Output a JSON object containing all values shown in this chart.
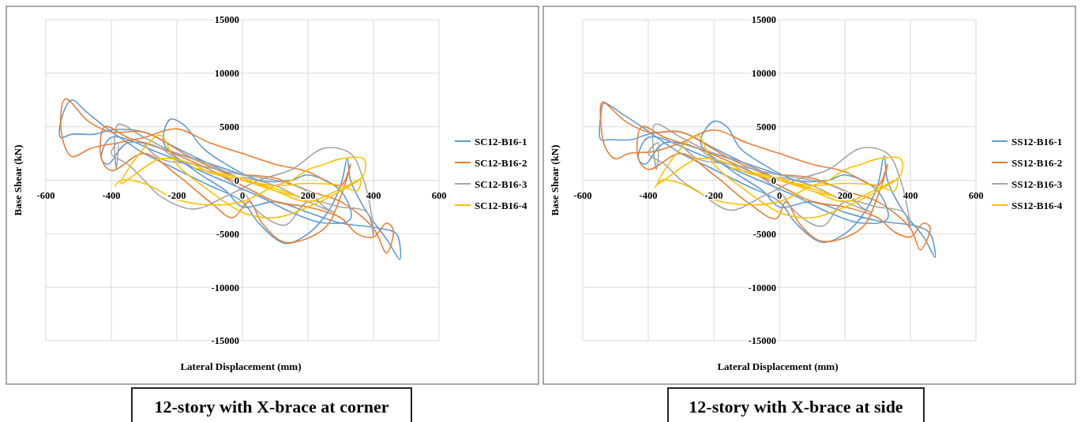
{
  "chart_data": [
    {
      "type": "line",
      "title": "12-story with X-brace at corner",
      "xlabel": "Lateral Displacement (mm)",
      "ylabel": "Base Shear (kN)",
      "xlim": [
        -600,
        600
      ],
      "xticks": [
        -600,
        -400,
        -200,
        0,
        200,
        400,
        600
      ],
      "ylim": [
        -15000,
        15000
      ],
      "yticks": [
        -15000,
        -10000,
        -5000,
        0,
        5000,
        10000,
        15000
      ],
      "grid": true,
      "legend": "right",
      "line_style": "solid",
      "marker": "none",
      "series": [
        {
          "name": "SC12-B16-1",
          "color": "#5b9bd5",
          "x": [
            0,
            -100,
            -200,
            -300,
            -400,
            -450,
            -520,
            -555,
            -550,
            -520,
            -480,
            -420,
            -350,
            -300,
            -200,
            -100,
            0,
            50,
            130,
            200,
            260,
            300,
            320,
            330,
            380,
            440,
            480,
            470,
            420,
            300,
            200,
            100,
            0,
            -50,
            -150,
            -240,
            -220,
            -180,
            -120,
            -50,
            50,
            150,
            200,
            300,
            330,
            250,
            150,
            50,
            -100,
            -250,
            -400,
            -430,
            -410,
            -350,
            -200,
            0
          ],
          "values": [
            0,
            1500,
            3000,
            4500,
            4700,
            4300,
            4300,
            4000,
            6000,
            7500,
            6500,
            5000,
            3500,
            2500,
            1000,
            -500,
            -2000,
            -4000,
            -5900,
            -5000,
            -3000,
            -500,
            2000,
            0,
            -3000,
            -5500,
            -7400,
            -5000,
            -4500,
            -4000,
            -3000,
            -2000,
            -2500,
            -1000,
            1000,
            3500,
            5700,
            5200,
            3000,
            1500,
            0,
            0,
            500,
            -1000,
            -3600,
            -4000,
            -3000,
            -1500,
            500,
            2500,
            4000,
            2000,
            1500,
            3500,
            2500,
            500
          ]
        },
        {
          "name": "SC12-B16-2",
          "color": "#ed7d31",
          "x": [
            0,
            -150,
            -300,
            -400,
            -470,
            -540,
            -555,
            -540,
            -520,
            -460,
            -380,
            -300,
            -200,
            -100,
            0,
            100,
            200,
            300,
            330,
            300,
            250,
            130,
            60,
            20,
            -30,
            -100,
            -200,
            -300,
            -400,
            -430,
            -420,
            -350,
            -250,
            -100,
            0,
            100,
            200,
            300,
            350,
            400,
            440,
            460,
            440,
            400,
            300,
            200,
            100,
            0
          ],
          "values": [
            0,
            2000,
            4500,
            4500,
            5500,
            7600,
            5500,
            3000,
            2200,
            3000,
            3500,
            4000,
            4800,
            3500,
            2500,
            1500,
            800,
            -500,
            1500,
            -1500,
            -4500,
            -5800,
            -4000,
            -2000,
            -3500,
            -2000,
            500,
            2500,
            900,
            2000,
            5000,
            4000,
            3000,
            1000,
            -500,
            -2000,
            -2500,
            -3500,
            -5000,
            -5300,
            -4000,
            -4600,
            -6800,
            -4500,
            -2000,
            -1000,
            200,
            500
          ]
        },
        {
          "name": "SC12-B16-3",
          "color": "#a5a5a5",
          "x": [
            0,
            -100,
            -200,
            -300,
            -380,
            -385,
            -380,
            -400,
            -350,
            -300,
            -250,
            -150,
            -50,
            50,
            150,
            250,
            330,
            370,
            390,
            400,
            380,
            300,
            200,
            130,
            50,
            0,
            -100,
            -200,
            -250,
            -300,
            -250,
            -150,
            0,
            100,
            200,
            250,
            280,
            200,
            100,
            0
          ],
          "values": [
            0,
            1500,
            2500,
            4000,
            5200,
            1000,
            3500,
            2500,
            1500,
            0,
            -1500,
            -2700,
            -1500,
            0,
            1000,
            3000,
            2500,
            0,
            -2500,
            -5200,
            -3000,
            -2500,
            -2000,
            -4200,
            -3000,
            -1000,
            1000,
            2000,
            3000,
            3500,
            2000,
            1500,
            500,
            0,
            -1000,
            -2500,
            -3000,
            -2000,
            -500,
            300
          ]
        },
        {
          "name": "SC12-B16-4",
          "color": "#ffc000",
          "x": [
            -390,
            -370,
            -300,
            -200,
            -100,
            0,
            100,
            150,
            200,
            250,
            300,
            370,
            370,
            300,
            200,
            100,
            0,
            -100,
            -200,
            -250,
            -300,
            -370,
            -250,
            -150,
            -100,
            0,
            100,
            170,
            100,
            0,
            -100,
            -150,
            0,
            100,
            200,
            300,
            350,
            360,
            300,
            200,
            100,
            0
          ],
          "values": [
            -600,
            0,
            -300,
            -1800,
            -2300,
            -2000,
            -500,
            0,
            1000,
            1500,
            2000,
            2000,
            500,
            -1000,
            -2500,
            -3500,
            -3000,
            -1000,
            1500,
            4200,
            3000,
            -300,
            2000,
            1500,
            700,
            0,
            -800,
            -1500,
            -1000,
            200,
            800,
            1200,
            0,
            -500,
            -300,
            -500,
            -1000,
            0,
            -800,
            -2000,
            -1000,
            0
          ]
        }
      ]
    },
    {
      "type": "line",
      "title": "12-story with X-brace at side",
      "xlabel": "Lateral Displacement (mm)",
      "ylabel": "Base Shear (kN)",
      "xlim": [
        -600,
        600
      ],
      "xticks": [
        -600,
        -400,
        -200,
        0,
        200,
        400,
        600
      ],
      "ylim": [
        -15000,
        15000
      ],
      "yticks": [
        -15000,
        -10000,
        -5000,
        0,
        5000,
        10000,
        15000
      ],
      "grid": true,
      "legend": "right",
      "line_style": "solid",
      "marker": "none",
      "series": [
        {
          "name": "SS12-B16-1",
          "color": "#5b9bd5",
          "x": [
            0,
            -100,
            -200,
            -300,
            -400,
            -450,
            -520,
            -545,
            -545,
            -535,
            -480,
            -420,
            -350,
            -300,
            -200,
            -100,
            0,
            50,
            130,
            200,
            260,
            300,
            320,
            330,
            380,
            440,
            475,
            460,
            420,
            300,
            200,
            100,
            0,
            -50,
            -150,
            -240,
            -200,
            -160,
            -120,
            -50,
            50,
            150,
            200,
            300,
            330,
            250,
            150,
            50,
            -100,
            -250,
            -400,
            -430,
            -410,
            -350,
            -200,
            0
          ],
          "values": [
            0,
            1500,
            3000,
            4500,
            4300,
            3800,
            3800,
            3800,
            6000,
            7200,
            6200,
            5000,
            3500,
            2500,
            1000,
            -500,
            -2000,
            -4000,
            -5800,
            -5000,
            -3000,
            -500,
            2300,
            0,
            -3000,
            -5300,
            -7200,
            -5000,
            -4300,
            -3800,
            -3000,
            -2000,
            -2500,
            -1000,
            1000,
            3500,
            5500,
            5000,
            3000,
            1500,
            0,
            0,
            500,
            -1000,
            -3600,
            -4000,
            -3000,
            -1500,
            500,
            2500,
            4000,
            2000,
            1500,
            3500,
            2500,
            500
          ]
        },
        {
          "name": "SS12-B16-2",
          "color": "#ed7d31",
          "x": [
            0,
            -150,
            -300,
            -400,
            -470,
            -540,
            -545,
            -530,
            -500,
            -460,
            -380,
            -300,
            -200,
            -100,
            0,
            100,
            200,
            300,
            330,
            300,
            250,
            130,
            60,
            20,
            -10,
            -100,
            -200,
            -300,
            -400,
            -430,
            -420,
            -350,
            -250,
            -100,
            0,
            100,
            200,
            300,
            350,
            400,
            440,
            460,
            430,
            400,
            300,
            200,
            100,
            0
          ],
          "values": [
            0,
            2000,
            4500,
            4500,
            5500,
            7300,
            5500,
            3000,
            2000,
            2500,
            2700,
            3500,
            4700,
            3500,
            2500,
            1500,
            800,
            -500,
            1500,
            -1500,
            -4500,
            -5700,
            -4000,
            -2000,
            -3600,
            -2000,
            500,
            2500,
            1000,
            2000,
            5000,
            4000,
            3000,
            1000,
            -500,
            -2000,
            -2500,
            -3500,
            -4800,
            -5300,
            -4000,
            -4400,
            -6500,
            -4500,
            -2000,
            -1000,
            200,
            500
          ]
        },
        {
          "name": "SS12-B16-3",
          "color": "#a5a5a5",
          "x": [
            0,
            -100,
            -200,
            -300,
            -380,
            -375,
            -370,
            -400,
            -350,
            -300,
            -250,
            -150,
            -50,
            50,
            150,
            250,
            330,
            370,
            390,
            400,
            380,
            300,
            200,
            130,
            50,
            0,
            -100,
            -200,
            -250,
            -300,
            -250,
            -150,
            0,
            100,
            200,
            250,
            280,
            200,
            100,
            0
          ],
          "values": [
            0,
            1500,
            2500,
            4000,
            5200,
            1000,
            3500,
            2500,
            1500,
            0,
            -1000,
            -2800,
            -1500,
            0,
            1000,
            3000,
            2500,
            0,
            -2500,
            -4500,
            -3000,
            -2500,
            -2000,
            -4300,
            -3000,
            -1000,
            1000,
            2000,
            3000,
            3500,
            2000,
            1500,
            500,
            0,
            -1000,
            -2500,
            -3000,
            -2000,
            -500,
            300
          ]
        },
        {
          "name": "SS12-B16-4",
          "color": "#ffc000",
          "x": [
            -380,
            -360,
            -300,
            -200,
            -100,
            0,
            100,
            150,
            200,
            250,
            300,
            370,
            370,
            300,
            200,
            100,
            0,
            -100,
            -200,
            -250,
            -300,
            -370,
            -250,
            -150,
            -100,
            0,
            100,
            170,
            100,
            0,
            -100,
            -150,
            0,
            100,
            200,
            300,
            350,
            360,
            300,
            200,
            100,
            0
          ],
          "values": [
            -700,
            0,
            -300,
            -1800,
            -2300,
            -2000,
            -500,
            0,
            1000,
            1500,
            2000,
            2000,
            500,
            -1000,
            -2500,
            -3500,
            -3000,
            -1000,
            1500,
            4200,
            3000,
            -300,
            2000,
            1500,
            700,
            0,
            -800,
            -1500,
            -1000,
            200,
            800,
            1200,
            0,
            -500,
            -300,
            -500,
            -1000,
            0,
            -800,
            -2000,
            -1000,
            0
          ]
        }
      ]
    }
  ]
}
